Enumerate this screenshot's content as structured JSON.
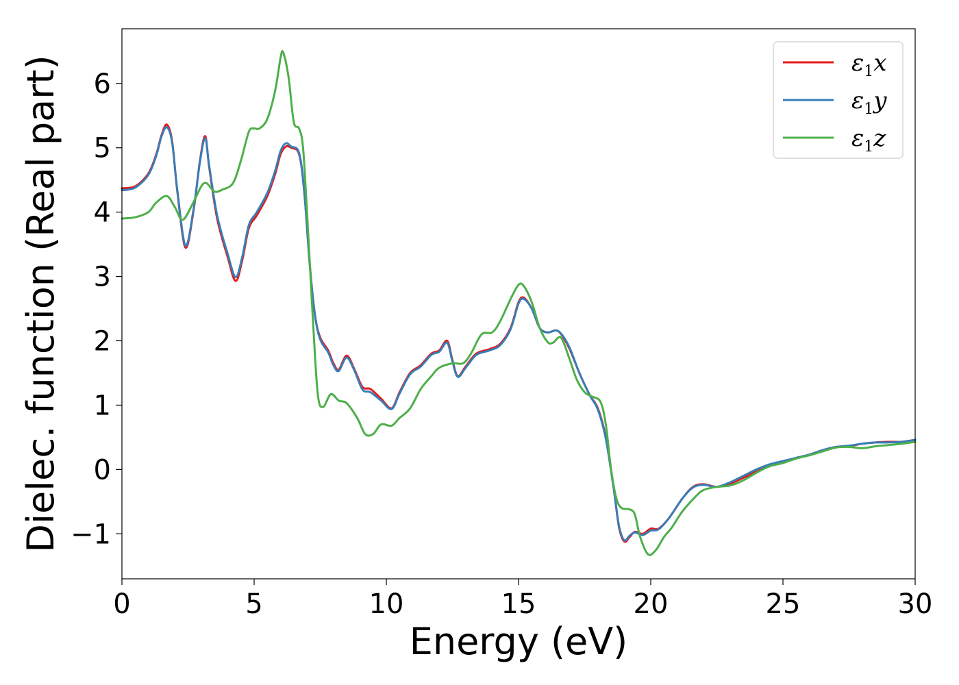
{
  "chart_data": {
    "type": "line",
    "title": "",
    "xlabel": "Energy (eV)",
    "ylabel": "Dielec. function (Real part)",
    "xlim": [
      0,
      30
    ],
    "ylim": [
      -1.7,
      6.85
    ],
    "xticks": [
      0,
      5,
      10,
      15,
      20,
      25,
      30
    ],
    "xtick_labels": [
      "0",
      "5",
      "10",
      "15",
      "20",
      "25",
      "30"
    ],
    "yticks": [
      -1,
      0,
      1,
      2,
      3,
      4,
      5,
      6
    ],
    "ytick_labels": [
      "−1",
      "0",
      "1",
      "2",
      "3",
      "4",
      "5",
      "6"
    ],
    "grid": false,
    "legend_position": "top-right",
    "series": [
      {
        "name": "ε1x",
        "name_base": "ε",
        "name_sub": "1",
        "name_suffix": "x",
        "color": "#e41a1c",
        "points": [
          [
            0,
            4.37
          ],
          [
            0.5,
            4.4
          ],
          [
            1.0,
            4.6
          ],
          [
            1.3,
            4.9
          ],
          [
            1.5,
            5.2
          ],
          [
            1.7,
            5.36
          ],
          [
            1.9,
            5.1
          ],
          [
            2.1,
            4.3
          ],
          [
            2.4,
            3.45
          ],
          [
            2.7,
            4.0
          ],
          [
            2.95,
            4.8
          ],
          [
            3.15,
            5.18
          ],
          [
            3.3,
            4.7
          ],
          [
            3.6,
            3.9
          ],
          [
            4.0,
            3.3
          ],
          [
            4.3,
            2.93
          ],
          [
            4.55,
            3.25
          ],
          [
            4.8,
            3.75
          ],
          [
            5.1,
            3.95
          ],
          [
            5.5,
            4.25
          ],
          [
            5.8,
            4.6
          ],
          [
            6.0,
            4.9
          ],
          [
            6.2,
            5.02
          ],
          [
            6.4,
            5.0
          ],
          [
            6.7,
            4.9
          ],
          [
            6.9,
            4.3
          ],
          [
            7.1,
            3.2
          ],
          [
            7.3,
            2.4
          ],
          [
            7.5,
            2.05
          ],
          [
            7.8,
            1.85
          ],
          [
            8.0,
            1.65
          ],
          [
            8.2,
            1.55
          ],
          [
            8.5,
            1.77
          ],
          [
            8.8,
            1.55
          ],
          [
            9.1,
            1.28
          ],
          [
            9.4,
            1.25
          ],
          [
            9.8,
            1.1
          ],
          [
            10.2,
            0.95
          ],
          [
            10.5,
            1.2
          ],
          [
            10.9,
            1.5
          ],
          [
            11.3,
            1.62
          ],
          [
            11.7,
            1.8
          ],
          [
            12.0,
            1.85
          ],
          [
            12.3,
            2.0
          ],
          [
            12.5,
            1.7
          ],
          [
            12.7,
            1.45
          ],
          [
            13.0,
            1.6
          ],
          [
            13.4,
            1.8
          ],
          [
            13.9,
            1.87
          ],
          [
            14.3,
            1.95
          ],
          [
            14.7,
            2.2
          ],
          [
            15.0,
            2.6
          ],
          [
            15.2,
            2.67
          ],
          [
            15.5,
            2.5
          ],
          [
            15.8,
            2.2
          ],
          [
            16.1,
            2.13
          ],
          [
            16.5,
            2.15
          ],
          [
            16.9,
            1.9
          ],
          [
            17.3,
            1.5
          ],
          [
            17.7,
            1.15
          ],
          [
            18.0,
            0.95
          ],
          [
            18.3,
            0.5
          ],
          [
            18.6,
            -0.3
          ],
          [
            18.8,
            -0.9
          ],
          [
            19.0,
            -1.12
          ],
          [
            19.2,
            -1.05
          ],
          [
            19.4,
            -0.97
          ],
          [
            19.7,
            -1.0
          ],
          [
            20.0,
            -0.92
          ],
          [
            20.3,
            -0.92
          ],
          [
            20.7,
            -0.75
          ],
          [
            21.2,
            -0.45
          ],
          [
            21.6,
            -0.27
          ],
          [
            22.0,
            -0.23
          ],
          [
            22.5,
            -0.27
          ],
          [
            23.0,
            -0.22
          ],
          [
            23.5,
            -0.13
          ],
          [
            24.0,
            -0.03
          ],
          [
            24.5,
            0.06
          ],
          [
            25.0,
            0.12
          ],
          [
            25.5,
            0.18
          ],
          [
            26.0,
            0.23
          ],
          [
            26.5,
            0.3
          ],
          [
            27.0,
            0.35
          ],
          [
            27.5,
            0.36
          ],
          [
            28.0,
            0.4
          ],
          [
            28.5,
            0.42
          ],
          [
            29.0,
            0.43
          ],
          [
            29.5,
            0.43
          ],
          [
            30.0,
            0.46
          ]
        ]
      },
      {
        "name": "ε1y",
        "name_base": "ε",
        "name_sub": "1",
        "name_suffix": "y",
        "color": "#377eb8",
        "points": [
          [
            0,
            4.34
          ],
          [
            0.5,
            4.38
          ],
          [
            1.0,
            4.58
          ],
          [
            1.3,
            4.88
          ],
          [
            1.5,
            5.18
          ],
          [
            1.7,
            5.32
          ],
          [
            1.9,
            5.08
          ],
          [
            2.1,
            4.32
          ],
          [
            2.4,
            3.48
          ],
          [
            2.7,
            4.02
          ],
          [
            2.95,
            4.78
          ],
          [
            3.15,
            5.15
          ],
          [
            3.3,
            4.72
          ],
          [
            3.6,
            3.95
          ],
          [
            4.0,
            3.35
          ],
          [
            4.3,
            2.99
          ],
          [
            4.55,
            3.3
          ],
          [
            4.8,
            3.8
          ],
          [
            5.1,
            4.0
          ],
          [
            5.5,
            4.3
          ],
          [
            5.8,
            4.65
          ],
          [
            6.0,
            4.95
          ],
          [
            6.2,
            5.07
          ],
          [
            6.4,
            5.02
          ],
          [
            6.7,
            4.92
          ],
          [
            6.9,
            4.3
          ],
          [
            7.1,
            3.2
          ],
          [
            7.3,
            2.4
          ],
          [
            7.5,
            2.02
          ],
          [
            7.8,
            1.82
          ],
          [
            8.0,
            1.62
          ],
          [
            8.2,
            1.53
          ],
          [
            8.5,
            1.74
          ],
          [
            8.8,
            1.53
          ],
          [
            9.1,
            1.24
          ],
          [
            9.4,
            1.2
          ],
          [
            9.8,
            1.07
          ],
          [
            10.2,
            0.94
          ],
          [
            10.5,
            1.18
          ],
          [
            10.9,
            1.48
          ],
          [
            11.3,
            1.6
          ],
          [
            11.7,
            1.78
          ],
          [
            12.0,
            1.83
          ],
          [
            12.3,
            1.97
          ],
          [
            12.5,
            1.68
          ],
          [
            12.7,
            1.44
          ],
          [
            13.0,
            1.58
          ],
          [
            13.4,
            1.78
          ],
          [
            13.9,
            1.85
          ],
          [
            14.3,
            1.93
          ],
          [
            14.7,
            2.18
          ],
          [
            15.0,
            2.58
          ],
          [
            15.2,
            2.65
          ],
          [
            15.5,
            2.5
          ],
          [
            15.8,
            2.2
          ],
          [
            16.1,
            2.13
          ],
          [
            16.5,
            2.15
          ],
          [
            16.9,
            1.92
          ],
          [
            17.3,
            1.5
          ],
          [
            17.7,
            1.15
          ],
          [
            18.0,
            0.93
          ],
          [
            18.3,
            0.48
          ],
          [
            18.6,
            -0.3
          ],
          [
            18.8,
            -0.88
          ],
          [
            19.0,
            -1.1
          ],
          [
            19.2,
            -1.03
          ],
          [
            19.4,
            -0.98
          ],
          [
            19.7,
            -1.02
          ],
          [
            20.0,
            -0.95
          ],
          [
            20.3,
            -0.93
          ],
          [
            20.7,
            -0.75
          ],
          [
            21.2,
            -0.45
          ],
          [
            21.6,
            -0.28
          ],
          [
            22.0,
            -0.24
          ],
          [
            22.5,
            -0.27
          ],
          [
            23.0,
            -0.2
          ],
          [
            23.5,
            -0.1
          ],
          [
            24.0,
            0.0
          ],
          [
            24.5,
            0.08
          ],
          [
            25.0,
            0.13
          ],
          [
            25.5,
            0.18
          ],
          [
            26.0,
            0.23
          ],
          [
            26.5,
            0.3
          ],
          [
            27.0,
            0.35
          ],
          [
            27.5,
            0.37
          ],
          [
            28.0,
            0.4
          ],
          [
            28.5,
            0.42
          ],
          [
            29.0,
            0.42
          ],
          [
            29.5,
            0.43
          ],
          [
            30.0,
            0.46
          ]
        ]
      },
      {
        "name": "ε1z",
        "name_base": "ε",
        "name_sub": "1",
        "name_suffix": "z",
        "color": "#4daf4a",
        "points": [
          [
            0,
            3.9
          ],
          [
            0.5,
            3.92
          ],
          [
            1.0,
            4.0
          ],
          [
            1.3,
            4.15
          ],
          [
            1.7,
            4.25
          ],
          [
            2.0,
            4.08
          ],
          [
            2.3,
            3.88
          ],
          [
            2.7,
            4.15
          ],
          [
            3.0,
            4.4
          ],
          [
            3.2,
            4.45
          ],
          [
            3.5,
            4.32
          ],
          [
            3.8,
            4.35
          ],
          [
            4.2,
            4.45
          ],
          [
            4.5,
            4.8
          ],
          [
            4.8,
            5.25
          ],
          [
            5.0,
            5.3
          ],
          [
            5.2,
            5.3
          ],
          [
            5.5,
            5.45
          ],
          [
            5.8,
            5.9
          ],
          [
            6.0,
            6.4
          ],
          [
            6.1,
            6.48
          ],
          [
            6.3,
            6.1
          ],
          [
            6.5,
            5.4
          ],
          [
            6.7,
            5.3
          ],
          [
            6.85,
            5.0
          ],
          [
            7.0,
            4.0
          ],
          [
            7.2,
            2.5
          ],
          [
            7.4,
            1.2
          ],
          [
            7.6,
            0.97
          ],
          [
            7.9,
            1.17
          ],
          [
            8.2,
            1.07
          ],
          [
            8.5,
            1.03
          ],
          [
            8.9,
            0.8
          ],
          [
            9.2,
            0.55
          ],
          [
            9.5,
            0.55
          ],
          [
            9.8,
            0.7
          ],
          [
            10.2,
            0.68
          ],
          [
            10.5,
            0.8
          ],
          [
            10.9,
            0.95
          ],
          [
            11.3,
            1.25
          ],
          [
            11.7,
            1.45
          ],
          [
            12.0,
            1.58
          ],
          [
            12.5,
            1.65
          ],
          [
            12.9,
            1.65
          ],
          [
            13.2,
            1.8
          ],
          [
            13.6,
            2.1
          ],
          [
            14.0,
            2.13
          ],
          [
            14.3,
            2.3
          ],
          [
            14.7,
            2.65
          ],
          [
            15.0,
            2.87
          ],
          [
            15.2,
            2.85
          ],
          [
            15.5,
            2.6
          ],
          [
            15.8,
            2.2
          ],
          [
            16.1,
            1.98
          ],
          [
            16.3,
            1.97
          ],
          [
            16.6,
            2.05
          ],
          [
            16.9,
            1.75
          ],
          [
            17.2,
            1.4
          ],
          [
            17.5,
            1.2
          ],
          [
            17.8,
            1.13
          ],
          [
            18.1,
            1.05
          ],
          [
            18.3,
            0.7
          ],
          [
            18.5,
            0.0
          ],
          [
            18.7,
            -0.45
          ],
          [
            18.9,
            -0.6
          ],
          [
            19.2,
            -0.62
          ],
          [
            19.4,
            -0.7
          ],
          [
            19.6,
            -1.05
          ],
          [
            19.9,
            -1.32
          ],
          [
            20.2,
            -1.25
          ],
          [
            20.5,
            -1.05
          ],
          [
            20.8,
            -0.9
          ],
          [
            21.2,
            -0.65
          ],
          [
            21.7,
            -0.42
          ],
          [
            22.0,
            -0.32
          ],
          [
            22.5,
            -0.27
          ],
          [
            23.0,
            -0.25
          ],
          [
            23.5,
            -0.17
          ],
          [
            24.0,
            -0.05
          ],
          [
            24.5,
            0.05
          ],
          [
            25.0,
            0.1
          ],
          [
            25.5,
            0.17
          ],
          [
            26.0,
            0.22
          ],
          [
            26.5,
            0.28
          ],
          [
            27.0,
            0.34
          ],
          [
            27.5,
            0.35
          ],
          [
            28.0,
            0.33
          ],
          [
            28.5,
            0.36
          ],
          [
            29.0,
            0.38
          ],
          [
            29.5,
            0.4
          ],
          [
            30.0,
            0.43
          ]
        ]
      }
    ]
  }
}
